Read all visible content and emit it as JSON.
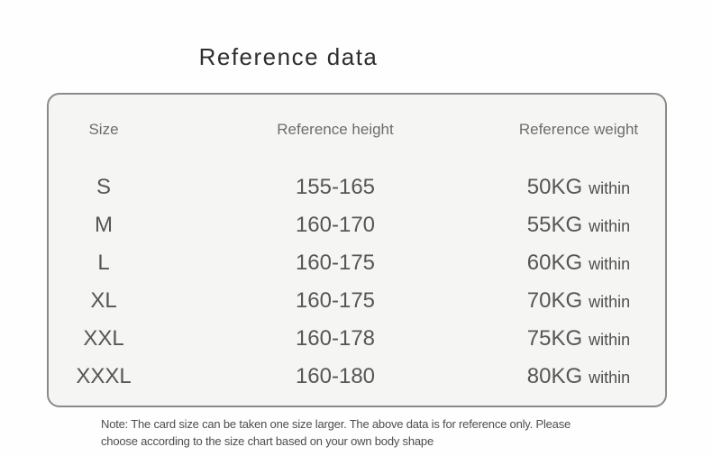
{
  "title": "Reference data",
  "table": {
    "headers": [
      "Size",
      "Reference height",
      "Reference weight"
    ],
    "rows": [
      {
        "size": "S",
        "height": "155-165",
        "weight": "50KG",
        "weight_suffix": "within"
      },
      {
        "size": "M",
        "height": "160-170",
        "weight": "55KG",
        "weight_suffix": "within"
      },
      {
        "size": "L",
        "height": "160-175",
        "weight": "60KG",
        "weight_suffix": "within"
      },
      {
        "size": "XL",
        "height": "160-175",
        "weight": "70KG",
        "weight_suffix": "within"
      },
      {
        "size": "XXL",
        "height": "160-178",
        "weight": "75KG",
        "weight_suffix": "within"
      },
      {
        "size": "XXXL",
        "height": "160-180",
        "weight": "80KG",
        "weight_suffix": "within"
      }
    ]
  },
  "note": {
    "lines": [
      "Note: The card size can be taken one size larger. The above data is for reference only. Please",
      "choose according to the size chart based on your own body shape"
    ]
  },
  "chart_data": {
    "type": "table",
    "title": "Reference data",
    "columns": [
      "Size",
      "Reference height",
      "Reference weight"
    ],
    "rows": [
      [
        "S",
        "155-165",
        "50KG within"
      ],
      [
        "M",
        "160-170",
        "55KG within"
      ],
      [
        "L",
        "160-175",
        "60KG within"
      ],
      [
        "XL",
        "160-175",
        "70KG within"
      ],
      [
        "XXL",
        "160-178",
        "75KG within"
      ],
      [
        "XXXL",
        "160-180",
        "80KG within"
      ]
    ],
    "footnote": "Note: The card size can be taken one size larger. The above data is for reference only. Please choose according to the size chart based on your own body shape"
  },
  "colors": {
    "page_background": "#fefefe",
    "card_background": "#f5f5f4",
    "card_border": "#8a8a8a",
    "header_text": "#6d6d6d",
    "value_text": "#565656",
    "title_text": "#2e2e2e",
    "note_text": "#4d4d4d"
  }
}
